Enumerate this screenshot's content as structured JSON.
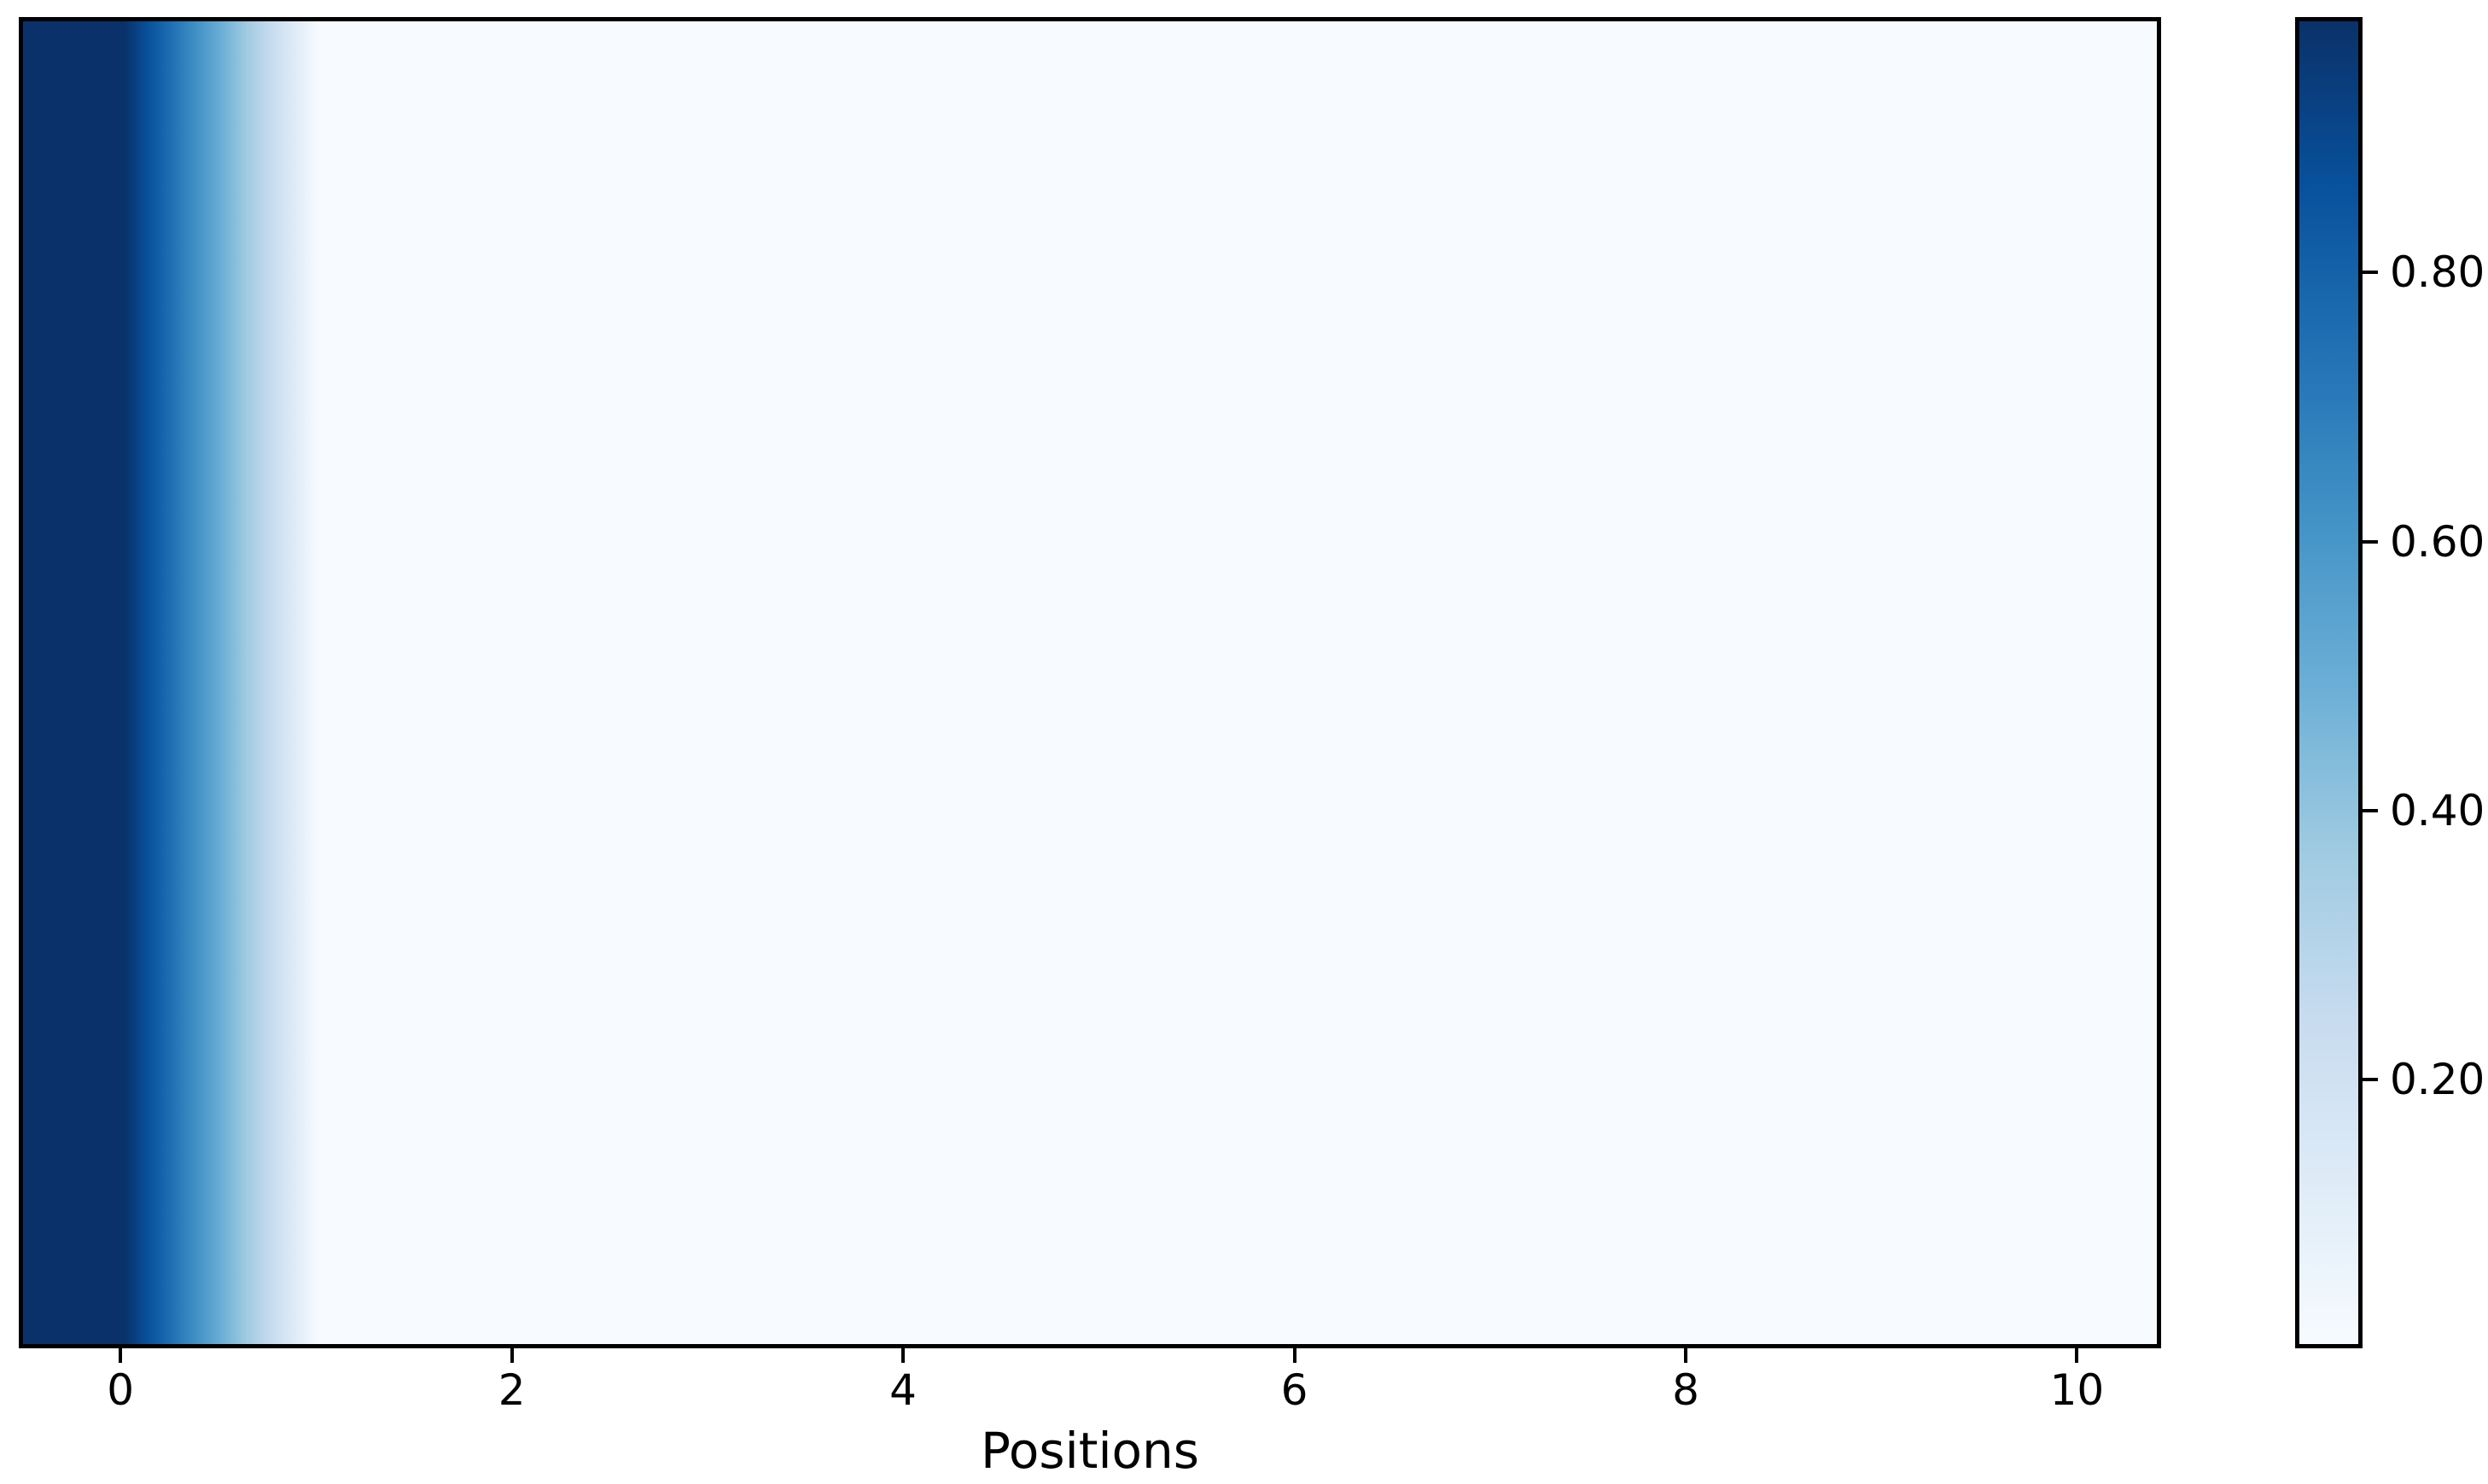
{
  "chart_data": {
    "type": "heatmap",
    "title": "",
    "xlabel": "Positions",
    "ylabel": "",
    "colormap": "Blues",
    "interpolation": "bilinear",
    "x": [
      0,
      1,
      2,
      3,
      4,
      5,
      6,
      7,
      8,
      9,
      10
    ],
    "values": [
      [
        0.99,
        0.001,
        0.001,
        0.001,
        0.001,
        0.001,
        0.001,
        0.001,
        0.001,
        0.001,
        0.001
      ]
    ],
    "xlim": [
      -0.52,
      10.43
    ],
    "x_ticks": {
      "values": [
        0,
        2,
        4,
        6,
        8,
        10
      ],
      "labels": [
        "0",
        "2",
        "4",
        "6",
        "8",
        "10"
      ]
    },
    "colorbar": {
      "vmin": 0.0,
      "vmax": 0.99,
      "tick_values": [
        0.8,
        0.6,
        0.4,
        0.2
      ],
      "tick_labels": [
        "0.80",
        "0.60",
        "0.40",
        "0.20"
      ]
    },
    "colors": {
      "max_color": "#0a3169",
      "min_color": "#f7fbff",
      "frame_color": "#000000",
      "colormap_stops": [
        "#0a3169",
        "#08519c",
        "#2171b5",
        "#4292c6",
        "#6baed6",
        "#9ecae1",
        "#c6dbef",
        "#deebf7",
        "#f7fbff"
      ],
      "heatmap_gradient_stops": [
        {
          "pct": 0.0,
          "color": "#0a3169"
        },
        {
          "pct": 4.74,
          "color": "#0a3169"
        },
        {
          "pct": 5.88,
          "color": "#08519c"
        },
        {
          "pct": 7.02,
          "color": "#2171b5"
        },
        {
          "pct": 8.16,
          "color": "#4292c6"
        },
        {
          "pct": 9.3,
          "color": "#6baed6"
        },
        {
          "pct": 10.44,
          "color": "#9ecae1"
        },
        {
          "pct": 11.58,
          "color": "#c6dbef"
        },
        {
          "pct": 12.72,
          "color": "#deebf7"
        },
        {
          "pct": 13.86,
          "color": "#f7fbff"
        },
        {
          "pct": 100.0,
          "color": "#f7fbff"
        }
      ]
    },
    "legend": null,
    "grid": false
  }
}
